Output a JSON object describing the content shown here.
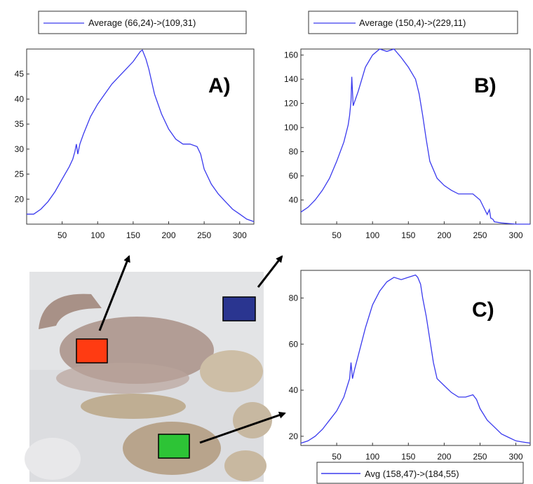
{
  "colors": {
    "line": "#3a3aee",
    "frame": "#333333",
    "arrow": "#000000",
    "photo_bg": "#d9dbdd",
    "region_red": "#ff3b12",
    "region_blue": "#2a3590",
    "region_green": "#2dc436"
  },
  "photo": {
    "description_icon": "photo-thumbnail",
    "regions": [
      "red-region",
      "blue-region",
      "green-region"
    ]
  },
  "chart_data": [
    {
      "type": "line",
      "panel_label": "A)",
      "xlim": [
        0,
        320
      ],
      "ylim": [
        15,
        50
      ],
      "xticks": [
        50,
        100,
        150,
        200,
        250,
        300
      ],
      "yticks": [
        20,
        25,
        30,
        35,
        40,
        45
      ],
      "legend": "Average (66,24)->(109,31)",
      "legend_position": "top",
      "series": [
        {
          "name": "Average (66,24)->(109,31)",
          "x": [
            0,
            10,
            20,
            30,
            40,
            50,
            60,
            65,
            68,
            70,
            72,
            75,
            80,
            90,
            100,
            110,
            120,
            130,
            140,
            150,
            155,
            160,
            163,
            168,
            172,
            180,
            190,
            200,
            210,
            220,
            225,
            230,
            240,
            245,
            250,
            260,
            270,
            280,
            290,
            300,
            310,
            320
          ],
          "y": [
            17,
            17,
            18,
            19.5,
            21.5,
            24,
            26.5,
            28,
            29.5,
            31,
            29,
            31,
            33,
            36.5,
            39,
            41,
            43,
            44.5,
            46,
            47.5,
            48.5,
            49.5,
            49.8,
            48,
            46,
            41,
            37,
            34,
            32,
            31,
            31,
            31,
            30.5,
            29,
            26,
            23,
            21,
            19.5,
            18,
            17,
            16,
            15.5
          ]
        }
      ]
    },
    {
      "type": "line",
      "panel_label": "B)",
      "xlim": [
        0,
        320
      ],
      "ylim": [
        20,
        165
      ],
      "xticks": [
        50,
        100,
        150,
        200,
        250,
        300
      ],
      "yticks": [
        40,
        60,
        80,
        100,
        120,
        140,
        160
      ],
      "legend": "Average (150,4)->(229,11)",
      "legend_position": "top",
      "series": [
        {
          "name": "Average (150,4)->(229,11)",
          "x": [
            0,
            10,
            20,
            30,
            40,
            50,
            60,
            66,
            68,
            70,
            71,
            73,
            80,
            90,
            100,
            110,
            120,
            130,
            140,
            150,
            160,
            165,
            170,
            175,
            180,
            190,
            200,
            210,
            220,
            230,
            240,
            250,
            255,
            260,
            263,
            265,
            268,
            270,
            280,
            290,
            300,
            310,
            320
          ],
          "y": [
            30,
            34,
            40,
            48,
            58,
            72,
            88,
            102,
            110,
            122,
            142,
            118,
            130,
            150,
            160,
            165,
            163,
            165,
            158,
            150,
            140,
            128,
            110,
            90,
            72,
            58,
            52,
            48,
            45,
            45,
            45,
            40,
            34,
            28,
            32,
            25,
            24,
            22,
            21,
            20.5,
            20,
            20,
            20
          ]
        }
      ]
    },
    {
      "type": "line",
      "panel_label": "C)",
      "xlim": [
        0,
        320
      ],
      "ylim": [
        16,
        92
      ],
      "xticks": [
        50,
        100,
        150,
        200,
        250,
        300
      ],
      "yticks": [
        20,
        40,
        60,
        80
      ],
      "legend": "Avg (158,47)->(184,55)",
      "legend_position": "bottom-right",
      "series": [
        {
          "name": "Avg (158,47)->(184,55)",
          "x": [
            0,
            10,
            20,
            30,
            40,
            50,
            60,
            65,
            68,
            70,
            72,
            75,
            80,
            90,
            100,
            110,
            120,
            130,
            140,
            150,
            160,
            163,
            167,
            170,
            175,
            180,
            185,
            190,
            200,
            210,
            220,
            230,
            240,
            245,
            250,
            260,
            270,
            280,
            290,
            300,
            310,
            320
          ],
          "y": [
            17,
            18,
            20,
            23,
            27,
            31,
            37,
            42,
            45,
            52,
            45,
            49,
            55,
            67,
            77,
            83,
            87,
            89,
            88,
            89,
            90,
            89,
            86,
            80,
            72,
            62,
            52,
            45,
            42,
            39,
            37,
            37,
            38,
            36,
            32,
            27,
            24,
            21,
            19.5,
            18,
            17.5,
            17
          ]
        }
      ]
    }
  ]
}
